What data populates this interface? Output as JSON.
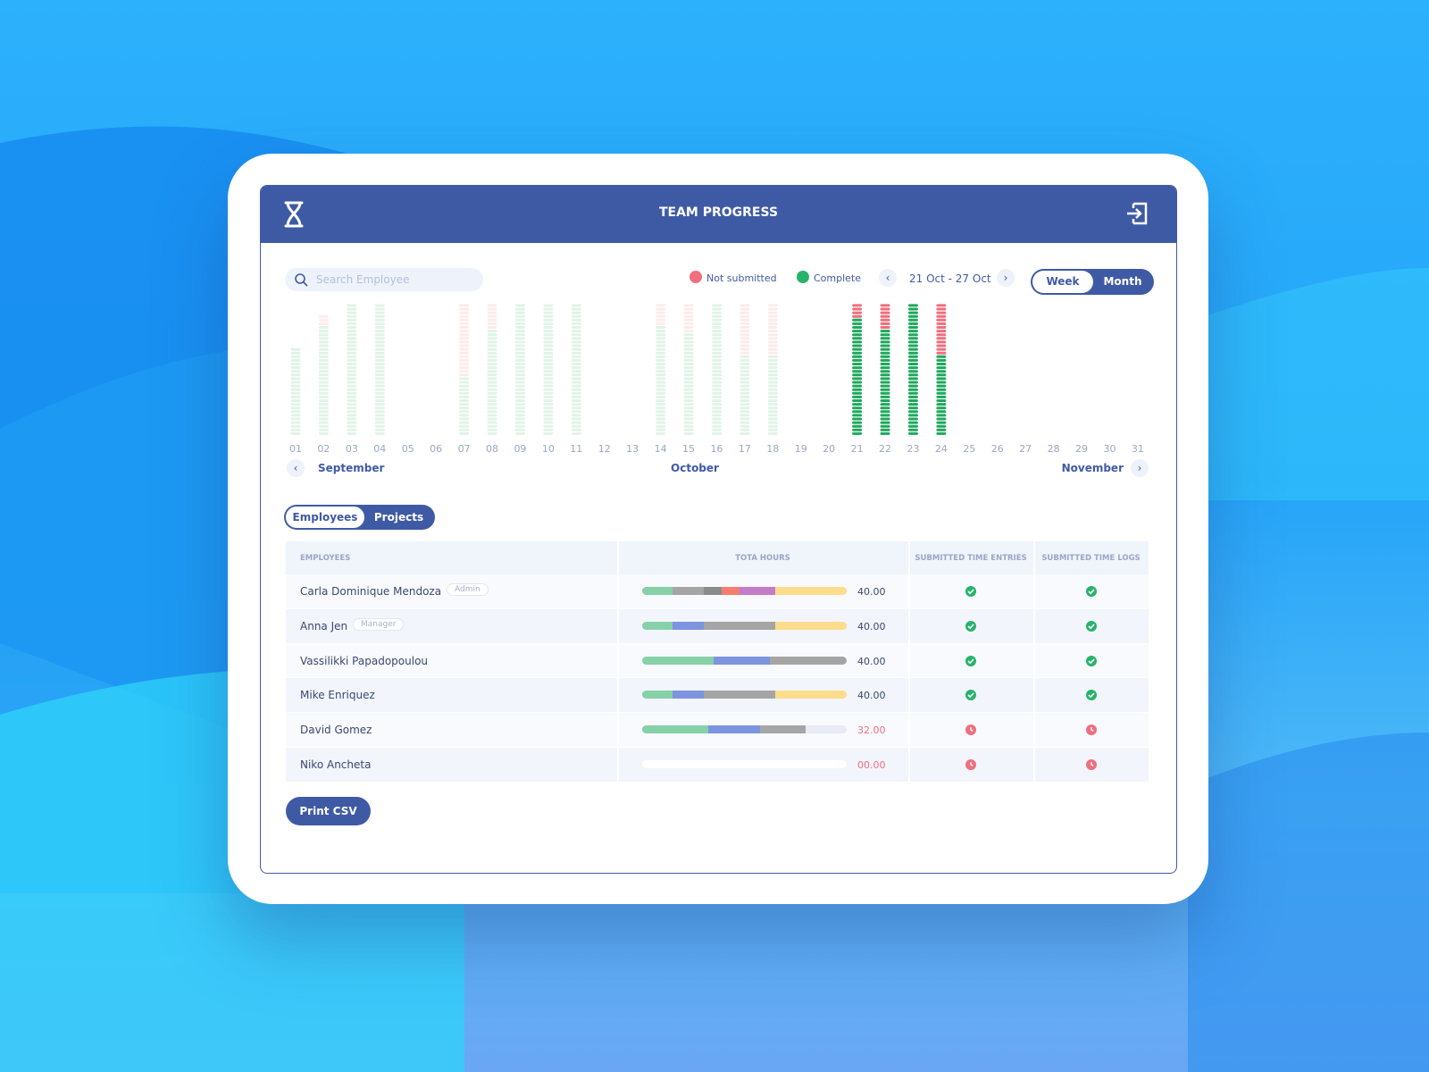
{
  "header": {
    "title": "TEAM PROGRESS"
  },
  "search": {
    "placeholder": "Search Employee"
  },
  "legend": [
    {
      "label": "Not submitted",
      "color": "#ef6f7e"
    },
    {
      "label": "Complete",
      "color": "#27b36b"
    }
  ],
  "date_range": "21 Oct - 27 Oct",
  "view_toggle": {
    "options": [
      "Week",
      "Month"
    ],
    "selected": 0
  },
  "calendar": {
    "days": [
      "01",
      "02",
      "03",
      "04",
      "05",
      "06",
      "07",
      "08",
      "09",
      "10",
      "11",
      "12",
      "13",
      "14",
      "15",
      "16",
      "17",
      "18",
      "19",
      "20",
      "21",
      "22",
      "23",
      "24",
      "25",
      "26",
      "27",
      "28",
      "29",
      "30",
      "31"
    ],
    "months": [
      "September",
      "October",
      "November"
    ],
    "complete": [
      24,
      30,
      36,
      36,
      0,
      0,
      16,
      29,
      36,
      36,
      36,
      0,
      0,
      30,
      28,
      36,
      22,
      22,
      0,
      0,
      32,
      29,
      36,
      22,
      0,
      0,
      0,
      0,
      0,
      0,
      0
    ],
    "not_submitted": [
      0,
      3,
      0,
      0,
      0,
      0,
      20,
      7,
      0,
      0,
      0,
      0,
      0,
      6,
      8,
      0,
      14,
      14,
      0,
      0,
      4,
      7,
      0,
      14,
      0,
      0,
      0,
      0,
      0,
      0,
      0
    ],
    "emphasis": [
      "faint",
      "faint",
      "faint",
      "faint",
      "faint",
      "faint",
      "faint",
      "faint",
      "faint",
      "faint",
      "faint",
      "faint",
      "faint",
      "faint",
      "faint",
      "faint",
      "faint",
      "faint",
      "faint",
      "faint",
      "strong",
      "strong",
      "strong",
      "strong",
      "faint",
      "faint",
      "faint",
      "faint",
      "faint",
      "faint",
      "faint"
    ]
  },
  "tabs": {
    "options": [
      "Employees",
      "Projects"
    ],
    "selected": 0
  },
  "table": {
    "columns": [
      "EMPLOYEES",
      "TOTA HOURS",
      "SUBMITTED TIME ENTRIES",
      "SUBMITTED TIME LOGS"
    ],
    "bar_max": 40,
    "rows": [
      {
        "name": "Carla Dominique Mendoza",
        "role": "Admin",
        "hours": "40.00",
        "segments": [
          {
            "value": 6,
            "color": "#86d1a7"
          },
          {
            "value": 6,
            "color": "#a5a5a5"
          },
          {
            "value": 3.5,
            "color": "#8b8b8b"
          },
          {
            "value": 3.5,
            "color": "#f57d6f"
          },
          {
            "value": 7,
            "color": "#c47bc8"
          },
          {
            "value": 14,
            "color": "#fddc8c"
          }
        ],
        "entries": "complete",
        "logs": "complete"
      },
      {
        "name": "Anna Jen",
        "role": "Manager",
        "hours": "40.00",
        "segments": [
          {
            "value": 6,
            "color": "#86d1a7"
          },
          {
            "value": 6,
            "color": "#7d94e0"
          },
          {
            "value": 14,
            "color": "#a5a5a5"
          },
          {
            "value": 14,
            "color": "#fddc8c"
          }
        ],
        "entries": "complete",
        "logs": "complete"
      },
      {
        "name": "Vassilikki Papadopoulou",
        "hours": "40.00",
        "segments": [
          {
            "value": 14,
            "color": "#86d1a7"
          },
          {
            "value": 11,
            "color": "#7d94e0"
          },
          {
            "value": 15,
            "color": "#a5a5a5"
          }
        ],
        "entries": "complete",
        "logs": "complete"
      },
      {
        "name": "Mike Enriquez",
        "hours": "40.00",
        "segments": [
          {
            "value": 6,
            "color": "#86d1a7"
          },
          {
            "value": 6,
            "color": "#7d94e0"
          },
          {
            "value": 14,
            "color": "#a5a5a5"
          },
          {
            "value": 14,
            "color": "#fddc8c"
          }
        ],
        "entries": "complete",
        "logs": "complete"
      },
      {
        "name": "David Gomez",
        "hours": "32.00",
        "segments": [
          {
            "value": 13,
            "color": "#86d1a7"
          },
          {
            "value": 10,
            "color": "#7d94e0"
          },
          {
            "value": 9,
            "color": "#a5a5a5"
          }
        ],
        "entries": "not_submitted",
        "logs": "not_submitted"
      },
      {
        "name": "Niko Ancheta",
        "hours": "00.00",
        "segments": [],
        "entries": "not_submitted",
        "logs": "not_submitted"
      }
    ]
  },
  "button": "Print CSV"
}
